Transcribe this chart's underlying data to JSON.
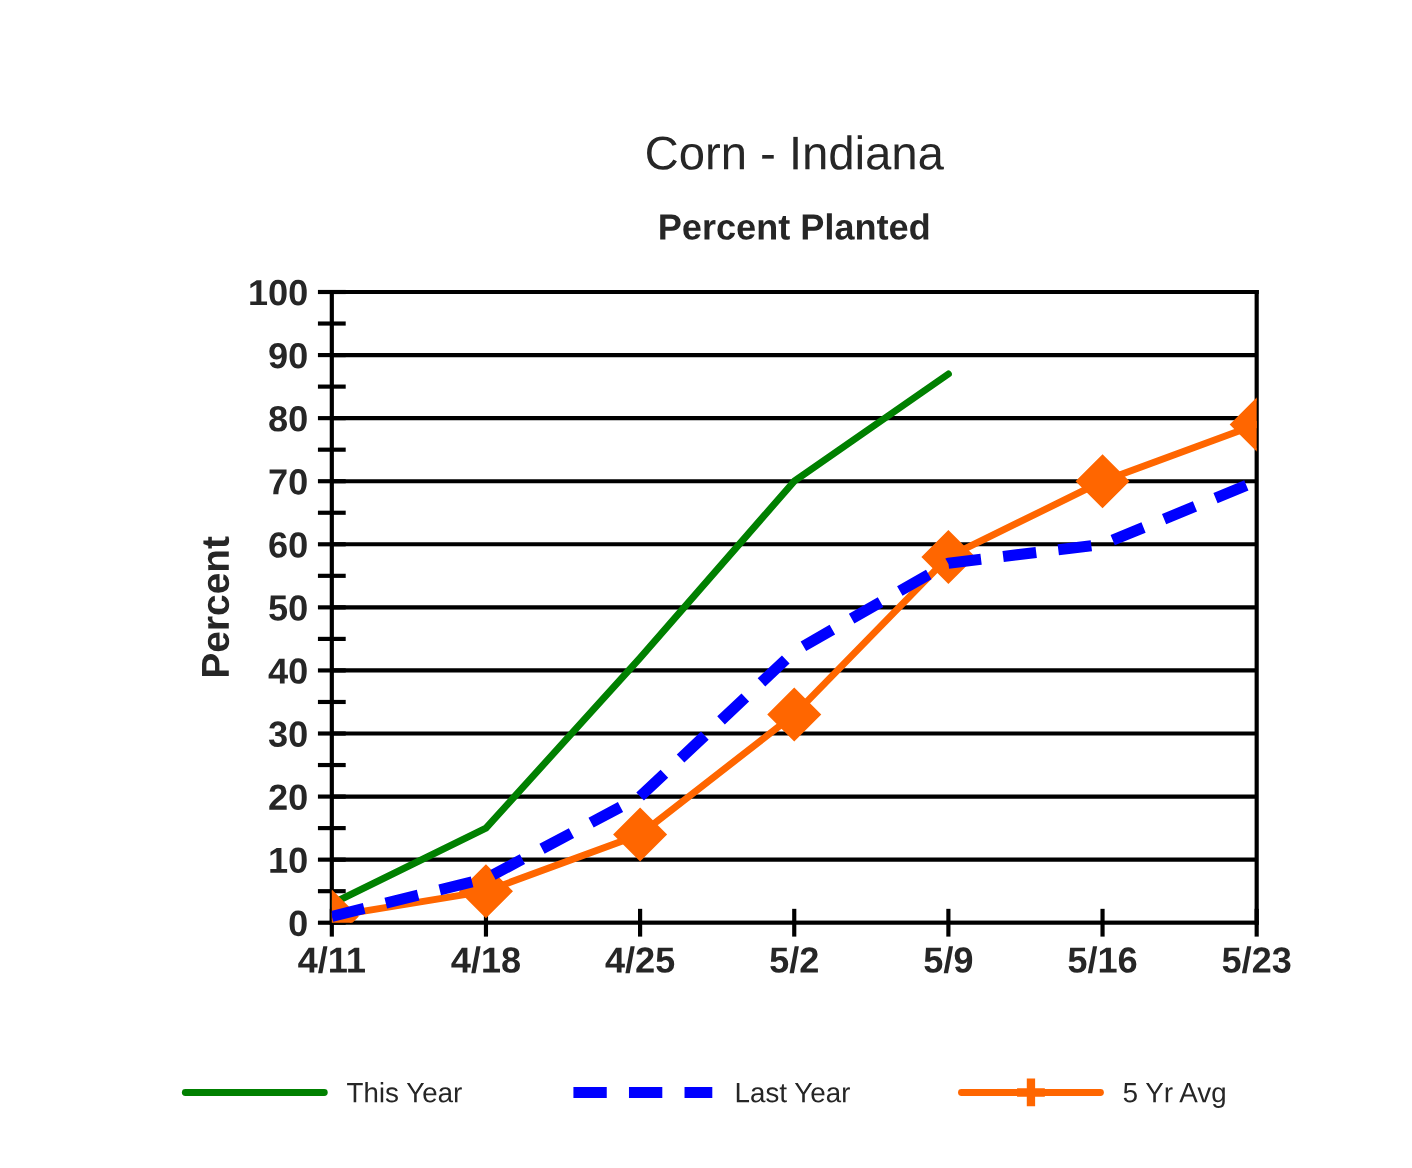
{
  "chart_data": {
    "type": "line",
    "title": "Corn - Indiana",
    "subtitle": "Percent Planted",
    "ylabel": "Percent",
    "categories": [
      "4/11",
      "4/18",
      "4/25",
      "5/2",
      "5/9",
      "5/16",
      "5/23"
    ],
    "series": [
      {
        "name": "This Year",
        "color": "#008000",
        "line_style": "solid",
        "marker": "none",
        "values": [
          3,
          15,
          42,
          70,
          87,
          null,
          null
        ]
      },
      {
        "name": "Last Year",
        "color": "#0000ff",
        "line_style": "dashed",
        "marker": "none",
        "values": [
          1,
          7,
          20,
          43,
          57,
          60,
          70
        ]
      },
      {
        "name": "5 Yr Avg",
        "color": "#ff6600",
        "line_style": "solid",
        "marker": "diamond",
        "values": [
          1,
          5,
          14,
          33,
          58,
          70,
          79
        ]
      }
    ],
    "ylim": [
      0,
      100
    ],
    "yticks": [
      0,
      {
        "value": 5,
        "label": null
      },
      10,
      {
        "value": 15,
        "label": null
      },
      20,
      {
        "value": 25,
        "label": null
      },
      30,
      {
        "value": 35,
        "label": null
      },
      40,
      {
        "value": 45,
        "label": null
      },
      50,
      {
        "value": 55,
        "label": null
      },
      60,
      {
        "value": 65,
        "label": null
      },
      70,
      {
        "value": 75,
        "label": null
      },
      80,
      {
        "value": 85,
        "label": null
      },
      90,
      {
        "value": 95,
        "label": null
      },
      100
    ],
    "grid": "y",
    "legend": "bottom"
  }
}
